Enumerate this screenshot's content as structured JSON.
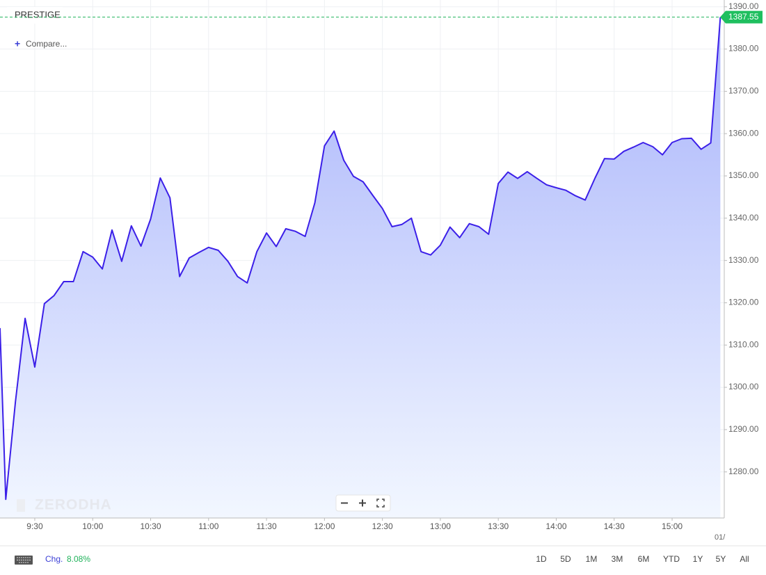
{
  "chart_data": {
    "type": "area",
    "title": "PRESTIGE",
    "x": [
      "9:12",
      "9:15",
      "9:20",
      "9:25",
      "9:30",
      "9:35",
      "9:40",
      "9:45",
      "9:50",
      "9:55",
      "10:00",
      "10:05",
      "10:10",
      "10:15",
      "10:20",
      "10:25",
      "10:30",
      "10:35",
      "10:40",
      "10:45",
      "10:50",
      "10:55",
      "11:00",
      "11:05",
      "11:10",
      "11:15",
      "11:20",
      "11:25",
      "11:30",
      "11:35",
      "11:40",
      "11:45",
      "11:50",
      "11:55",
      "12:00",
      "12:05",
      "12:10",
      "12:15",
      "12:20",
      "12:25",
      "12:30",
      "12:35",
      "12:40",
      "12:45",
      "12:50",
      "12:55",
      "13:00",
      "13:05",
      "13:10",
      "13:15",
      "13:20",
      "13:25",
      "13:30",
      "13:35",
      "13:40",
      "13:45",
      "13:50",
      "13:55",
      "14:00",
      "14:05",
      "14:10",
      "14:15",
      "14:20",
      "14:25",
      "14:30",
      "14:35",
      "14:40",
      "14:45",
      "14:50",
      "14:55",
      "15:00",
      "15:05",
      "15:10",
      "15:15",
      "15:20",
      "15:25"
    ],
    "series": [
      {
        "name": "PRESTIGE",
        "color": "#3b1fe8",
        "values": [
          1314,
          1273.5,
          1296.6,
          1316.3,
          1304.8,
          1319.8,
          1321.7,
          1325.0,
          1325.0,
          1332.1,
          1330.8,
          1328.0,
          1337.2,
          1329.8,
          1338.2,
          1333.4,
          1339.8,
          1349.5,
          1344.8,
          1326.2,
          1330.6,
          1331.9,
          1333.1,
          1332.4,
          1329.8,
          1326.2,
          1324.7,
          1332.1,
          1336.5,
          1333.3,
          1337.5,
          1336.9,
          1335.7,
          1343.6,
          1357.1,
          1360.6,
          1353.7,
          1349.9,
          1348.6,
          1345.4,
          1342.3,
          1338.0,
          1338.5,
          1340.0,
          1332.1,
          1331.3,
          1333.6,
          1337.9,
          1335.4,
          1338.7,
          1338.0,
          1336.2,
          1348.2,
          1350.9,
          1349.4,
          1351.0,
          1349.4,
          1347.9,
          1347.2,
          1346.6,
          1345.3,
          1344.3,
          1349.4,
          1354.1,
          1354.0,
          1355.8,
          1356.8,
          1357.9,
          1356.9,
          1355.0,
          1357.9,
          1358.8,
          1358.9,
          1356.3,
          1357.8,
          1387.55
        ]
      }
    ],
    "xlim": [
      "9:12",
      "15:27"
    ],
    "xticks": [
      "9:30",
      "10:00",
      "10:30",
      "11:00",
      "11:30",
      "12:00",
      "12:30",
      "13:00",
      "13:30",
      "14:00",
      "14:30",
      "15:00"
    ],
    "x_date_label": "01/",
    "ylim": [
      1269.1,
      1391.6
    ],
    "yticks": [
      {
        "value": 1280,
        "label": "1280.00"
      },
      {
        "value": 1290,
        "label": "1290.00"
      },
      {
        "value": 1300,
        "label": "1300.00"
      },
      {
        "value": 1310,
        "label": "1310.00"
      },
      {
        "value": 1320,
        "label": "1320.00"
      },
      {
        "value": 1330,
        "label": "1330.00"
      },
      {
        "value": 1340,
        "label": "1340.00"
      },
      {
        "value": 1350,
        "label": "1350.00"
      },
      {
        "value": 1360,
        "label": "1360.00"
      },
      {
        "value": 1370,
        "label": "1370.00"
      },
      {
        "value": 1380,
        "label": "1380.00"
      },
      {
        "value": 1390,
        "label": "1390.00"
      }
    ],
    "grid": true
  },
  "header": {
    "compare": "Compare..."
  },
  "watermark": "ZERODHA",
  "footer": {
    "change_label": "Chg.",
    "change_value": "8.08%",
    "ranges": [
      "1D",
      "5D",
      "1M",
      "3M",
      "6M",
      "YTD",
      "1Y",
      "5Y",
      "All"
    ]
  }
}
